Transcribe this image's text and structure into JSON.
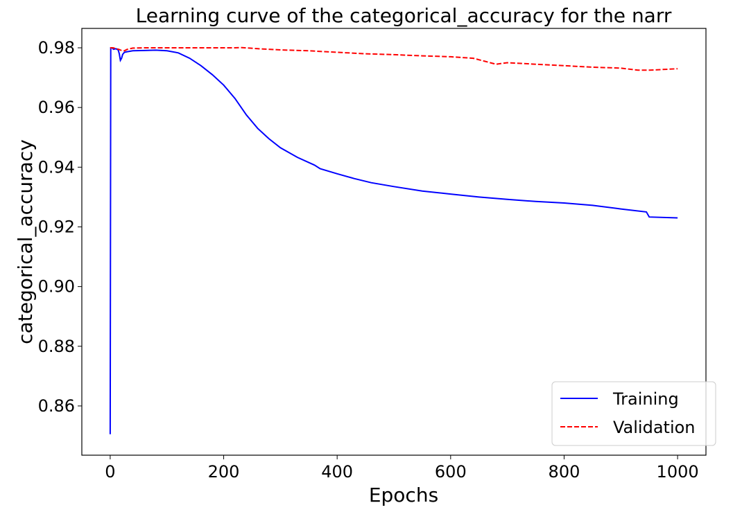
{
  "chart_data": {
    "type": "line",
    "title": "Learning curve of the categorical_accuracy for the narr",
    "xlabel": "Epochs",
    "ylabel": "categorical_accuracy",
    "xlim": [
      -50,
      1050
    ],
    "ylim": [
      0.8435,
      0.9865
    ],
    "xticks": [
      0,
      200,
      400,
      600,
      800,
      1000
    ],
    "xtick_labels": [
      "0",
      "200",
      "400",
      "600",
      "800",
      "1000"
    ],
    "yticks": [
      0.86,
      0.88,
      0.9,
      0.92,
      0.94,
      0.96,
      0.98
    ],
    "ytick_labels": [
      "0.86",
      "0.88",
      "0.90",
      "0.92",
      "0.94",
      "0.96",
      "0.98"
    ],
    "grid": false,
    "legend_position": "lower-right",
    "series": [
      {
        "name": "Training",
        "color": "#0000ff",
        "style": "solid",
        "x": [
          0,
          1,
          3,
          6,
          10,
          14,
          16,
          18,
          20,
          22,
          25,
          30,
          40,
          60,
          80,
          100,
          120,
          140,
          160,
          180,
          200,
          220,
          240,
          260,
          280,
          300,
          330,
          360,
          370,
          400,
          430,
          460,
          500,
          550,
          600,
          650,
          700,
          750,
          800,
          850,
          900,
          945,
          950,
          1000
        ],
        "y": [
          0.8505,
          0.98,
          0.98,
          0.9795,
          0.9797,
          0.9793,
          0.978,
          0.9758,
          0.9765,
          0.9778,
          0.9785,
          0.9787,
          0.979,
          0.9791,
          0.9792,
          0.979,
          0.9783,
          0.9765,
          0.974,
          0.971,
          0.9675,
          0.963,
          0.9575,
          0.953,
          0.9495,
          0.9465,
          0.9433,
          0.9407,
          0.9395,
          0.9378,
          0.9362,
          0.9348,
          0.9335,
          0.932,
          0.931,
          0.93,
          0.9292,
          0.9285,
          0.928,
          0.9272,
          0.926,
          0.925,
          0.9233,
          0.923
        ]
      },
      {
        "name": "Validation",
        "color": "#ff0000",
        "style": "dashed",
        "x": [
          0,
          5,
          10,
          15,
          20,
          25,
          30,
          40,
          60,
          100,
          150,
          200,
          220,
          230,
          245,
          260,
          300,
          350,
          400,
          450,
          500,
          550,
          600,
          640,
          660,
          680,
          700,
          750,
          800,
          850,
          900,
          930,
          950,
          1000
        ],
        "y": [
          0.98,
          0.98,
          0.9797,
          0.9795,
          0.9791,
          0.979,
          0.9795,
          0.9799,
          0.98,
          0.98,
          0.98,
          0.98,
          0.98,
          0.9801,
          0.9799,
          0.9797,
          0.9793,
          0.979,
          0.9785,
          0.978,
          0.9777,
          0.9773,
          0.977,
          0.9765,
          0.9755,
          0.9745,
          0.975,
          0.9745,
          0.974,
          0.9735,
          0.9732,
          0.9725,
          0.9725,
          0.973
        ]
      }
    ]
  }
}
